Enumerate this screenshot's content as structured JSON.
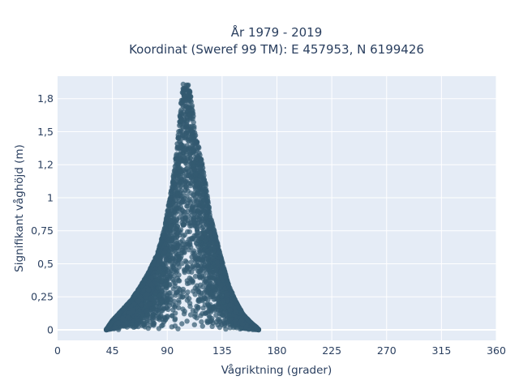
{
  "chart_data": {
    "type": "scatter",
    "title_lines": [
      "År 1979 - 2019",
      "Koordinat (Sweref 99 TM): E 457953, N 6199426"
    ],
    "xlabel": "Vågriktning (grader)",
    "ylabel": "Signifikant våghöjd (m)",
    "xlim": [
      0,
      360
    ],
    "ylim": [
      -0.08,
      1.92
    ],
    "x_ticks": [
      0,
      45,
      90,
      135,
      180,
      225,
      270,
      315,
      360
    ],
    "x_tick_labels": [
      "0",
      "45",
      "90",
      "135",
      "180",
      "225",
      "270",
      "315",
      "360"
    ],
    "y_ticks": [
      0,
      0.25,
      0.5,
      0.75,
      1,
      1.25,
      1.5,
      1.75
    ],
    "y_tick_labels": [
      "0",
      "0,25",
      "0,5",
      "0,75",
      "1",
      "1,2",
      "1,5",
      "1,8"
    ],
    "grid": true,
    "marker_color": "#335a70",
    "plot_background": "#e5ecf6",
    "envelope": {
      "x": [
        40,
        45,
        52,
        60,
        68,
        75,
        82,
        88,
        92,
        96,
        99,
        101,
        103,
        105,
        107,
        109,
        111,
        113,
        116,
        119,
        122,
        125,
        130,
        135,
        140,
        146,
        152,
        158,
        163,
        165
      ],
      "y": [
        0.0,
        0.07,
        0.14,
        0.22,
        0.33,
        0.44,
        0.58,
        0.78,
        1.0,
        1.22,
        1.48,
        1.7,
        1.86,
        1.87,
        1.86,
        1.8,
        1.66,
        1.48,
        1.38,
        1.25,
        1.08,
        0.88,
        0.7,
        0.52,
        0.35,
        0.22,
        0.12,
        0.06,
        0.02,
        0.0
      ]
    }
  }
}
